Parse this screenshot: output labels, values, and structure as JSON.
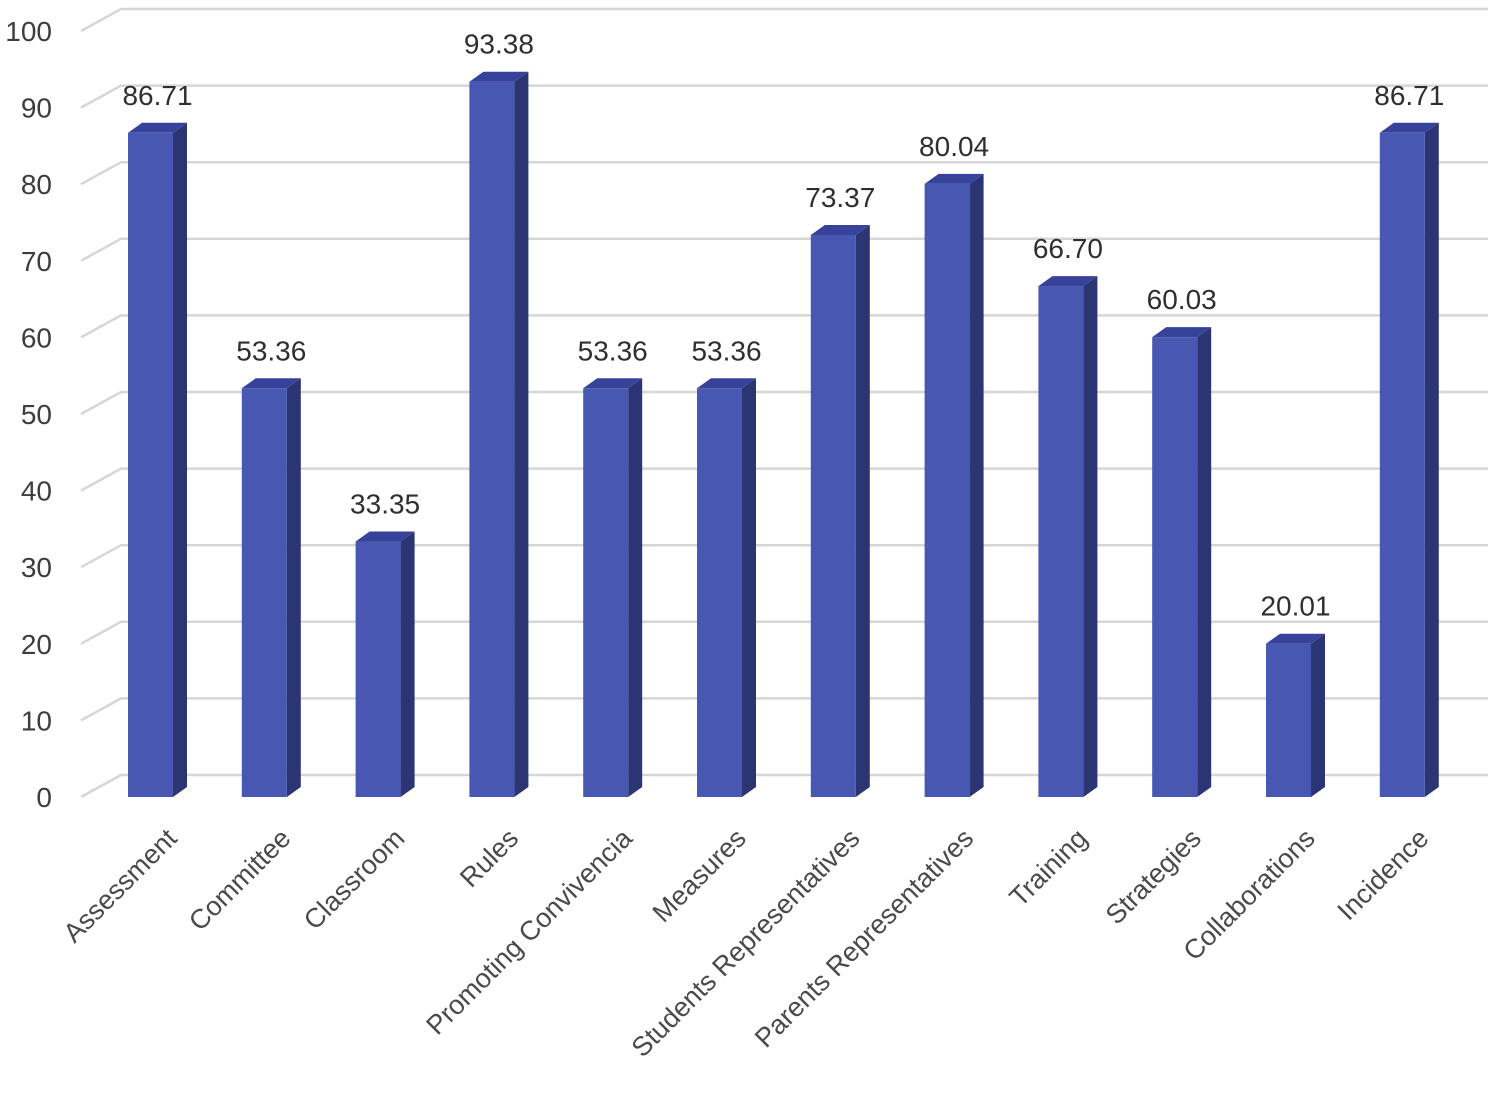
{
  "chart_data": {
    "type": "bar",
    "categories": [
      "Assessment",
      "Committee",
      "Classroom",
      "Rules",
      "Promoting Convivencia",
      "Measures",
      "Students Representatives",
      "Parents Representatives",
      "Training",
      "Strategies",
      "Collaborations",
      "Incidence"
    ],
    "values": [
      86.71,
      53.36,
      33.35,
      93.38,
      53.36,
      53.36,
      73.37,
      80.04,
      66.7,
      60.03,
      20.01,
      86.71
    ],
    "data_labels": [
      "86.71",
      "53.36",
      "33.35",
      "93.38",
      "53.36",
      "53.36",
      "73.37",
      "80.04",
      "66.70",
      "60.03",
      "20.01",
      "86.71"
    ],
    "yticks": [
      "0",
      "10",
      "20",
      "30",
      "40",
      "50",
      "60",
      "70",
      "80",
      "90",
      "100"
    ],
    "ylim": [
      0,
      100
    ],
    "title": "",
    "xlabel": "",
    "ylabel": "",
    "grid": true,
    "style": "3d-column",
    "colors": {
      "front": "#4857b2",
      "side": "#2c3573",
      "top": "#37439a"
    }
  }
}
